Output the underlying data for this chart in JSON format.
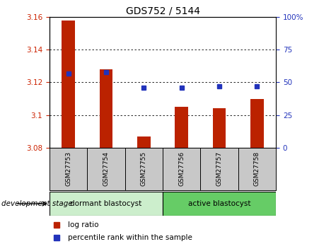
{
  "title": "GDS752 / 5144",
  "samples": [
    "GSM27753",
    "GSM27754",
    "GSM27755",
    "GSM27756",
    "GSM27757",
    "GSM27758"
  ],
  "log_ratio": [
    3.158,
    3.128,
    3.087,
    3.105,
    3.104,
    3.11
  ],
  "percentile_rank": [
    57,
    58,
    46,
    46,
    47,
    47
  ],
  "ylim_left": [
    3.08,
    3.16
  ],
  "ylim_right": [
    0,
    100
  ],
  "yticks_left": [
    3.08,
    3.1,
    3.12,
    3.14,
    3.16
  ],
  "yticks_right": [
    0,
    25,
    50,
    75,
    100
  ],
  "bar_color": "#bb2200",
  "dot_color": "#2233bb",
  "grid_color": "#000000",
  "groups": [
    {
      "label": "dormant blastocyst",
      "indices": [
        0,
        1,
        2
      ],
      "color": "#cceecc"
    },
    {
      "label": "active blastocyst",
      "indices": [
        3,
        4,
        5
      ],
      "color": "#66cc66"
    }
  ],
  "left_tick_color": "#cc2200",
  "right_tick_color": "#2233bb",
  "bar_width": 0.35,
  "base_value": 3.08,
  "development_stage_label": "development stage",
  "legend_log_ratio": "log ratio",
  "legend_percentile": "percentile rank within the sample",
  "xtick_bg_color": "#c8c8c8",
  "xtick_separator_color": "#888888"
}
